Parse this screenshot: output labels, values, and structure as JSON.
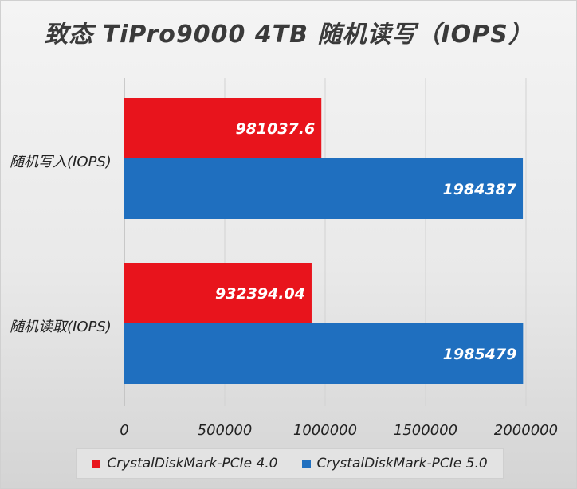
{
  "chart_data": {
    "type": "bar",
    "orientation": "horizontal",
    "title": "致态 TiPro9000 4TB 随机读写（IOPS）",
    "categories": [
      "随机写入(IOPS)",
      "随机读取(IOPS)"
    ],
    "series": [
      {
        "name": "CrystalDiskMark-PCIe 4.0",
        "color": "#e8141c",
        "values": [
          981037.6,
          932394.04
        ],
        "labels": [
          "981037.6",
          "932394.04"
        ]
      },
      {
        "name": "CrystalDiskMark-PCIe 5.0",
        "color": "#1f6fbf",
        "values": [
          1984387,
          1985479
        ],
        "labels": [
          "1984387",
          "1985479"
        ]
      }
    ],
    "xlim": [
      0,
      2000000
    ],
    "xticks": [
      "0",
      "500000",
      "1000000",
      "1500000",
      "2000000"
    ],
    "grid": true,
    "legend_position": "bottom"
  }
}
